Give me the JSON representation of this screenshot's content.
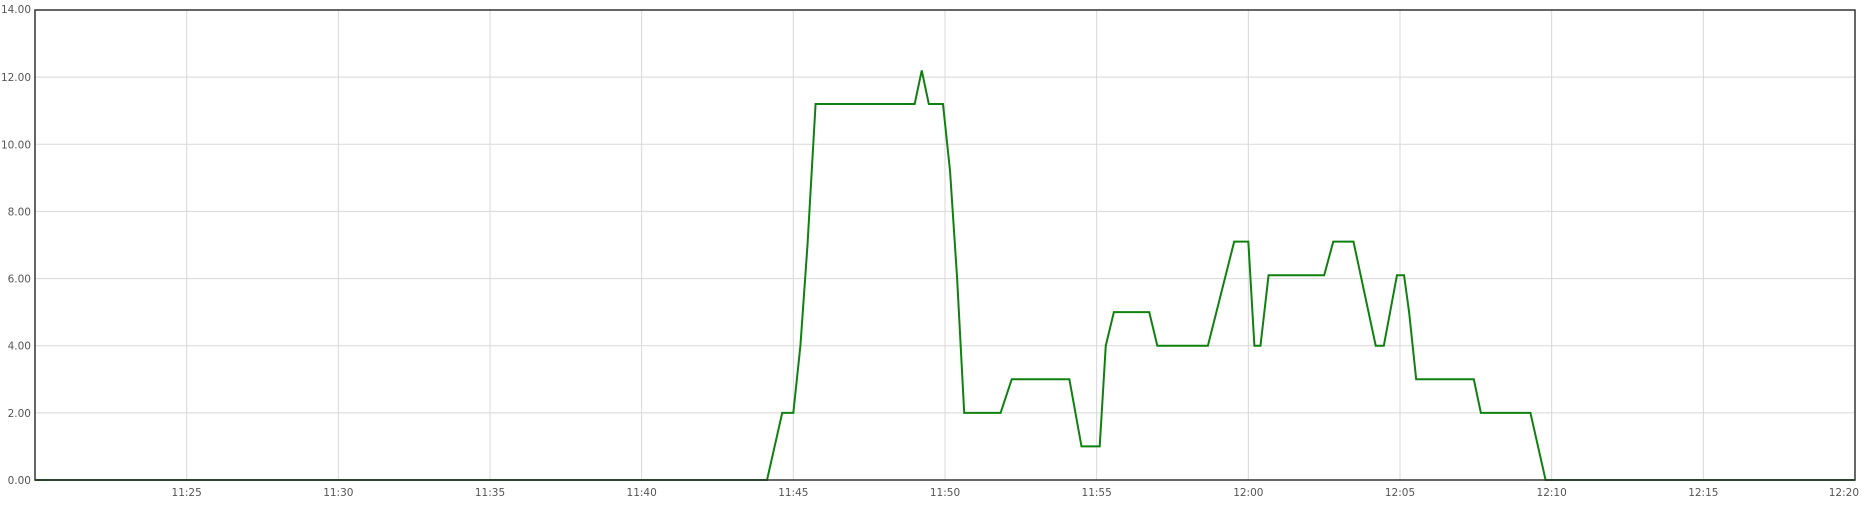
{
  "chart_data": {
    "type": "line",
    "title": "",
    "xlabel": "",
    "ylabel": "",
    "grid": true,
    "x_range": [
      "11:20",
      "12:20"
    ],
    "ylim": [
      0,
      14
    ],
    "y_ticks": [
      {
        "value": 0,
        "label": "0.00"
      },
      {
        "value": 2,
        "label": "2.00"
      },
      {
        "value": 4,
        "label": "4.00"
      },
      {
        "value": 6,
        "label": "6.00"
      },
      {
        "value": 8,
        "label": "8.00"
      },
      {
        "value": 10,
        "label": "10.00"
      },
      {
        "value": 12,
        "label": "12.00"
      },
      {
        "value": 14,
        "label": "14.00"
      }
    ],
    "x_ticks": [
      "11:25",
      "11:30",
      "11:35",
      "11:40",
      "11:45",
      "11:50",
      "11:55",
      "12:00",
      "12:05",
      "12:10",
      "12:15",
      "12:20"
    ],
    "series": [
      {
        "color": "#108010",
        "points": [
          [
            "11:20:00",
            0
          ],
          [
            "11:44:08",
            0
          ],
          [
            "11:44:38",
            2
          ],
          [
            "11:45:00",
            2
          ],
          [
            "11:45:14",
            4
          ],
          [
            "11:45:28",
            7
          ],
          [
            "11:45:44",
            11.2
          ],
          [
            "11:49:00",
            11.2
          ],
          [
            "11:49:14",
            12.2
          ],
          [
            "11:49:28",
            11.2
          ],
          [
            "11:49:56",
            11.2
          ],
          [
            "11:50:10",
            9.2
          ],
          [
            "11:50:24",
            6
          ],
          [
            "11:50:38",
            2
          ],
          [
            "11:51:50",
            2
          ],
          [
            "11:52:12",
            3
          ],
          [
            "11:54:06",
            3
          ],
          [
            "11:54:30",
            1
          ],
          [
            "11:55:06",
            1
          ],
          [
            "11:55:18",
            4
          ],
          [
            "11:55:34",
            5
          ],
          [
            "11:56:44",
            5
          ],
          [
            "11:57:00",
            4
          ],
          [
            "11:58:40",
            4
          ],
          [
            "11:59:32",
            7.1
          ],
          [
            "12:00:00",
            7.1
          ],
          [
            "12:00:12",
            4
          ],
          [
            "12:00:24",
            4
          ],
          [
            "12:00:40",
            6.1
          ],
          [
            "12:02:30",
            6.1
          ],
          [
            "12:02:48",
            7.1
          ],
          [
            "12:03:28",
            7.1
          ],
          [
            "12:04:12",
            4
          ],
          [
            "12:04:28",
            4
          ],
          [
            "12:04:54",
            6.1
          ],
          [
            "12:05:08",
            6.1
          ],
          [
            "12:05:18",
            5
          ],
          [
            "12:05:32",
            3
          ],
          [
            "12:07:26",
            3
          ],
          [
            "12:07:40",
            2
          ],
          [
            "12:09:18",
            2
          ],
          [
            "12:09:48",
            0
          ],
          [
            "12:20:00",
            0
          ]
        ]
      }
    ]
  }
}
